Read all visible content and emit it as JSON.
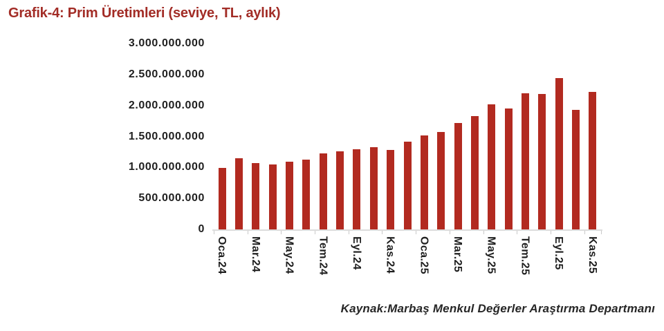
{
  "header": {
    "title": "Grafik-4: Prim Üretimleri (seviye, TL, aylık)",
    "title_color": "#A22C26"
  },
  "footer": {
    "source": "Kaynak:Marbaş Menkul Değerler Araştırma Departmanı"
  },
  "chart_data": {
    "type": "bar",
    "title": "Grafik-4: Prim Üretimleri (seviye, TL, aylık)",
    "categories": [
      "Oca.24",
      "Şub.24",
      "Mar.24",
      "Nis.24",
      "May.24",
      "Haz.24",
      "Tem.24",
      "Ağu.24",
      "Eyl.24",
      "Eki.24",
      "Kas.24",
      "Ara.24",
      "Oca.25",
      "Şub.25",
      "Mar.25",
      "Nis.25",
      "May.25",
      "Haz.25",
      "Tem.25",
      "Ağu.25",
      "Eyl.25",
      "Eki.25",
      "Kas.25"
    ],
    "values": [
      990000000,
      1150000000,
      1070000000,
      1050000000,
      1090000000,
      1130000000,
      1230000000,
      1260000000,
      1290000000,
      1330000000,
      1280000000,
      1420000000,
      1520000000,
      1570000000,
      1720000000,
      1830000000,
      2020000000,
      1950000000,
      2200000000,
      2190000000,
      2440000000,
      1930000000,
      2220000000
    ],
    "visible_x_tick_labels": [
      "Oca.24",
      "Mar.24",
      "May.24",
      "Tem.24",
      "Eyl.24",
      "Kas.24",
      "Oca.25",
      "Mar.25",
      "May.25",
      "Tem.25",
      "Eyl.25",
      "Kas.25"
    ],
    "x_label_every": 2,
    "xlabel": "",
    "ylabel": "",
    "ylim": [
      0,
      3000000000
    ],
    "y_ticks": [
      0,
      500000000,
      1000000000,
      1500000000,
      2000000000,
      2500000000,
      3000000000
    ],
    "y_tick_labels": [
      "0",
      "500.000.000",
      "1.000.000.000",
      "1.500.000.000",
      "2.000.000.000",
      "2.500.000.000",
      "3.000.000.000"
    ],
    "bar_color": "#B22A20",
    "axis_color": "#DCDCDC",
    "text_color": "#1f1f1f",
    "grid": false,
    "legend": false,
    "source": "Kaynak:Marbaş Menkul Değerler Araştırma Departmanı"
  }
}
